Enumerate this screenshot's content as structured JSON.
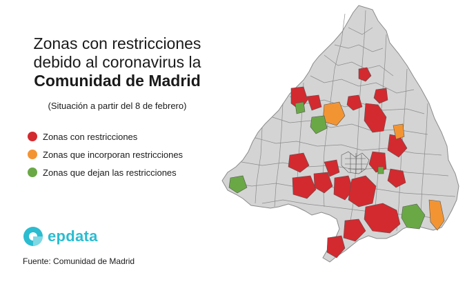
{
  "title": {
    "line1": "Zonas con restricciones",
    "line2": "debido al coronavirus la",
    "line3": "Comunidad de Madrid"
  },
  "subtitle": "(Situación a partir del 8 de febrero)",
  "legend": [
    {
      "label": "Zonas con restricciones",
      "color": "#d32a2f"
    },
    {
      "label": "Zonas que incorporan restricciones",
      "color": "#f39433"
    },
    {
      "label": "Zonas que dejan las restricciones",
      "color": "#6aa846"
    }
  ],
  "logo": {
    "text": "epdata",
    "color": "#2bbcd0"
  },
  "source": "Fuente: Comunidad de Madrid",
  "map_colors": {
    "base": "#d4d4d4",
    "border": "#8a8a8a",
    "restricted": "#d32a2f",
    "incorporate": "#f39433",
    "leave": "#6aa846"
  }
}
